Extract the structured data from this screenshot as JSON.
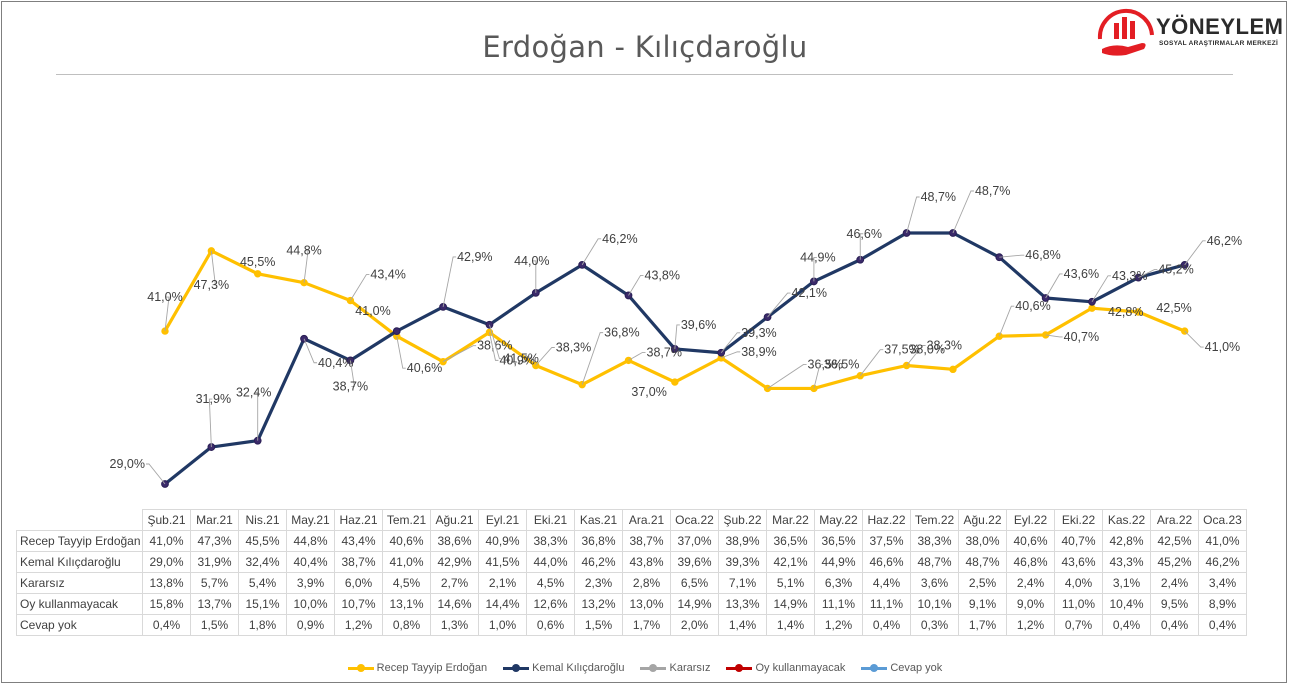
{
  "title": "Erdoğan - Kılıçdaroğlu",
  "logo": {
    "name": "YÖNEYLEM",
    "subtitle": "SOSYAL ARAŞTIRMALAR MERKEZİ"
  },
  "chart_data": {
    "type": "line",
    "categories": [
      "Şub.21",
      "Mar.21",
      "Nis.21",
      "May.21",
      "Haz.21",
      "Tem.21",
      "Ağu.21",
      "Eyl.21",
      "Eki.21",
      "Kas.21",
      "Ara.21",
      "Oca.22",
      "Şub.22",
      "Mar.22",
      "May.22",
      "Haz.22",
      "Tem.22",
      "Ağu.22",
      "Eyl.22",
      "Eki.22",
      "Kas.22",
      "Ara.22",
      "Oca.23"
    ],
    "series": [
      {
        "name": "Recep Tayyip Erdoğan",
        "color": "#ffc000",
        "plotted": true,
        "values": [
          41.0,
          47.3,
          45.5,
          44.8,
          43.4,
          40.6,
          38.6,
          40.9,
          38.3,
          36.8,
          38.7,
          37.0,
          38.9,
          36.5,
          36.5,
          37.5,
          38.3,
          38.0,
          40.6,
          40.7,
          42.8,
          42.5,
          41.0
        ],
        "labels": [
          "41,0%",
          "47,3%",
          "45,5%",
          "44,8%",
          "43,4%",
          "40,6%",
          "38,6%",
          "40,9%",
          "38,3%",
          "36,8%",
          "38,7%",
          "37,0%",
          "38,9%",
          "36,5%",
          "36,5%",
          "37,5%",
          "38,3%",
          "38,0%",
          "40,6%",
          "40,7%",
          "42,8%",
          "42,5%",
          "41,0%"
        ]
      },
      {
        "name": "Kemal Kılıçdaroğlu",
        "color": "#203864",
        "plotted": true,
        "values": [
          29.0,
          31.9,
          32.4,
          40.4,
          38.7,
          41.0,
          42.9,
          41.5,
          44.0,
          46.2,
          43.8,
          39.6,
          39.3,
          42.1,
          44.9,
          46.6,
          48.7,
          48.7,
          46.8,
          43.6,
          43.3,
          45.2,
          46.2
        ],
        "labels": [
          "29,0%",
          "31,9%",
          "32,4%",
          "40,4%",
          "38,7%",
          "41,0%",
          "42,9%",
          "41,5%",
          "44,0%",
          "46,2%",
          "43,8%",
          "39,6%",
          "39,3%",
          "42,1%",
          "44,9%",
          "46,6%",
          "48,7%",
          "48,7%",
          "46,8%",
          "43,6%",
          "43,3%",
          "45,2%",
          "46,2%"
        ]
      },
      {
        "name": "Kararsız",
        "color": "#a5a5a5",
        "plotted": false,
        "labels": [
          "13,8%",
          "5,7%",
          "5,4%",
          "3,9%",
          "6,0%",
          "4,5%",
          "2,7%",
          "2,1%",
          "4,5%",
          "2,3%",
          "2,8%",
          "6,5%",
          "7,1%",
          "5,1%",
          "6,3%",
          "4,4%",
          "3,6%",
          "2,5%",
          "2,4%",
          "4,0%",
          "3,1%",
          "2,4%",
          "3,4%"
        ]
      },
      {
        "name": "Oy kullanmayacak",
        "color": "#c00000",
        "plotted": false,
        "labels": [
          "15,8%",
          "13,7%",
          "15,1%",
          "10,0%",
          "10,7%",
          "13,1%",
          "14,6%",
          "14,4%",
          "12,6%",
          "13,2%",
          "13,0%",
          "14,9%",
          "13,3%",
          "14,9%",
          "11,1%",
          "11,1%",
          "10,1%",
          "9,1%",
          "9,0%",
          "11,0%",
          "10,4%",
          "9,5%",
          "8,9%"
        ]
      },
      {
        "name": "Cevap yok",
        "color": "#5b9bd5",
        "plotted": false,
        "labels": [
          "0,4%",
          "1,5%",
          "1,8%",
          "0,9%",
          "1,2%",
          "0,8%",
          "1,3%",
          "1,0%",
          "0,6%",
          "1,5%",
          "1,7%",
          "2,0%",
          "1,4%",
          "1,4%",
          "1,2%",
          "0,4%",
          "0,3%",
          "1,7%",
          "1,2%",
          "0,7%",
          "0,4%",
          "0,4%",
          "0,4%"
        ]
      }
    ],
    "ylim": [
      28,
      50
    ],
    "legend": "bottom",
    "grid": false,
    "data_table": true
  }
}
